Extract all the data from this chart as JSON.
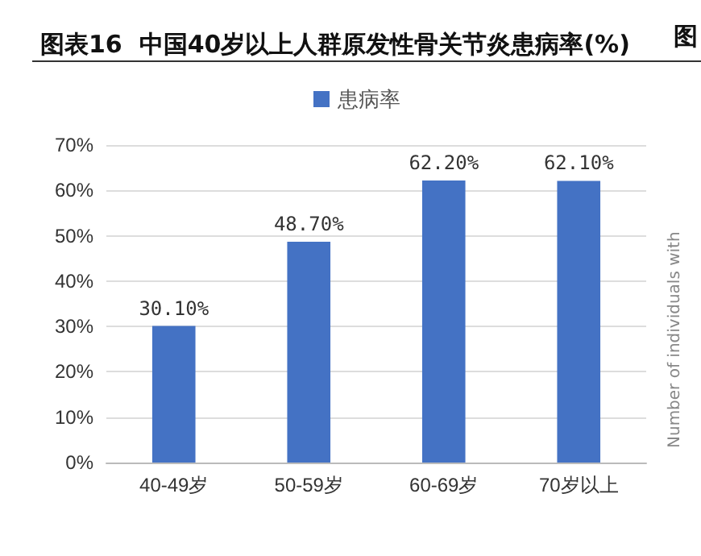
{
  "chart_data": {
    "type": "bar",
    "title": "图表16  中国40岁以上人群原发性骨关节炎患病率(%)",
    "categories": [
      "40-49岁",
      "50-59岁",
      "60-69岁",
      "70岁以上"
    ],
    "series": [
      {
        "name": "患病率",
        "color": "#4472c4",
        "values": [
          30.1,
          48.7,
          62.2,
          62.1
        ],
        "value_labels": [
          "30.10%",
          "48.70%",
          "62.20%",
          "62.10%"
        ]
      }
    ],
    "ylim": [
      0,
      70
    ],
    "yticks": [
      {
        "value": 0,
        "label": "0%"
      },
      {
        "value": 10,
        "label": "10%"
      },
      {
        "value": 20,
        "label": "20%"
      },
      {
        "value": 30,
        "label": "30%"
      },
      {
        "value": 40,
        "label": "40%"
      },
      {
        "value": 50,
        "label": "50%"
      },
      {
        "value": 60,
        "label": "60%"
      },
      {
        "value": 70,
        "label": "70%"
      }
    ],
    "grid": true,
    "legend": "top",
    "annotations": [
      "图",
      "Number of individuals with"
    ]
  }
}
